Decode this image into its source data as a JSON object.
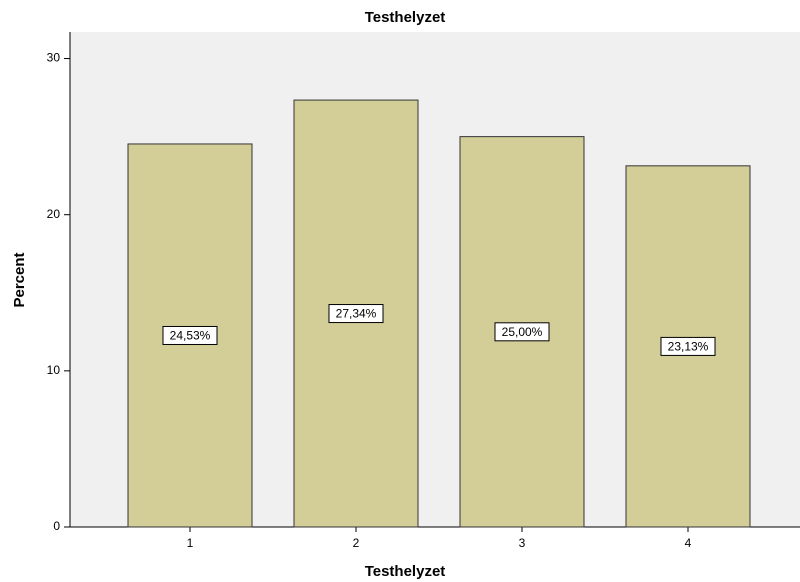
{
  "chart_data": {
    "type": "bar",
    "title": "Testhelyzet",
    "x_label": "Testhelyzet",
    "y_label": "Percent",
    "categories": [
      "1",
      "2",
      "3",
      "4"
    ],
    "values": [
      24.53,
      27.34,
      25.0,
      23.13
    ],
    "value_labels": [
      "24,53%",
      "27,34%",
      "25,00%",
      "23,13%"
    ],
    "color": "#d3cd98",
    "ylim": [
      0,
      31.7
    ],
    "yticks": [
      0,
      10,
      20,
      30
    ],
    "grid": false
  }
}
